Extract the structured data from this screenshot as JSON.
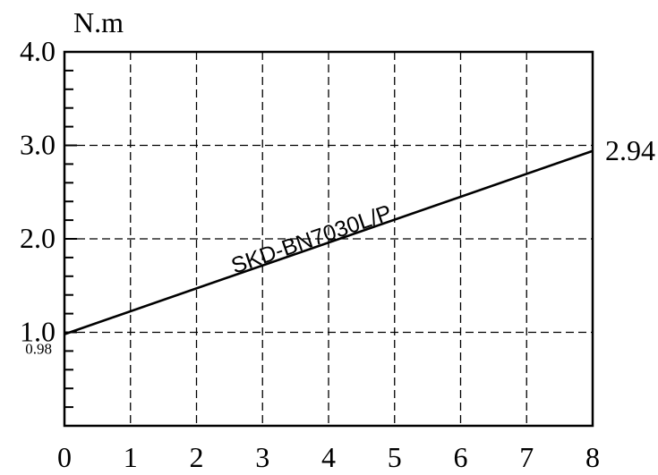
{
  "chart_data": {
    "type": "line",
    "y_unit_label": "N.m",
    "xlim": [
      0,
      8
    ],
    "ylim": [
      0,
      4.0
    ],
    "x_ticks": [
      0,
      1,
      2,
      3,
      4,
      5,
      6,
      7,
      8
    ],
    "x_tick_labels": [
      "0",
      "1",
      "2",
      "3",
      "4",
      "5",
      "6",
      "7",
      "8"
    ],
    "y_ticks": [
      1.0,
      2.0,
      3.0,
      4.0
    ],
    "y_tick_labels": [
      "1.0",
      "2.0",
      "3.0",
      "4.0"
    ],
    "grid": true,
    "series": [
      {
        "name": "SKD-BN7030L/P",
        "x": [
          0,
          8
        ],
        "y": [
          0.98,
          2.94
        ]
      }
    ],
    "annotations": {
      "start_value": "0.98",
      "end_value": "2.94"
    }
  }
}
